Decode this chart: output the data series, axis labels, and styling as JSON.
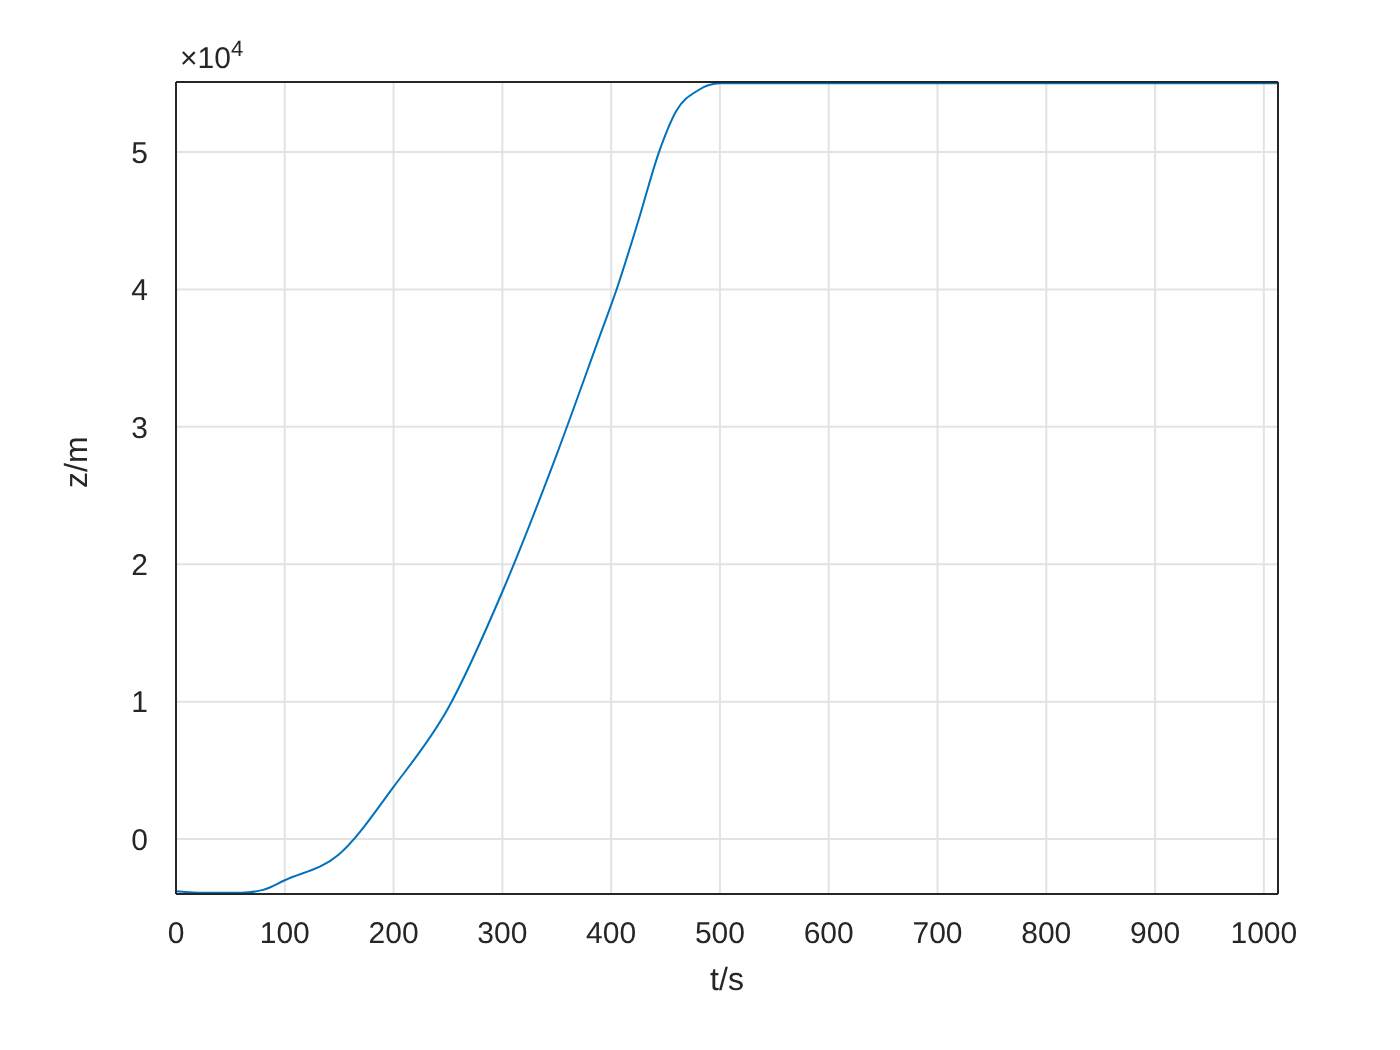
{
  "chart_data": {
    "type": "line",
    "xlabel": "t/s",
    "ylabel": "z/m",
    "annotations": [
      "×10$^{4}$"
    ],
    "x": [
      0,
      20,
      40,
      60,
      80,
      100,
      150,
      200,
      250,
      300,
      350,
      389,
      405,
      425,
      444,
      460,
      480,
      500,
      520,
      600,
      700,
      800,
      900,
      1013
    ],
    "series": [
      {
        "color": "#0072bd",
        "values": [
          -0.38,
          -0.39,
          -0.39,
          -0.39,
          -0.37,
          -0.3,
          -0.11,
          0.38,
          0.95,
          1.8,
          2.8,
          3.65,
          4.0,
          4.5,
          5.0,
          5.3,
          5.45,
          5.5,
          5.5,
          5.5,
          5.5,
          5.5,
          5.5,
          5.5
        ]
      }
    ],
    "xlim": [
      0,
      1013
    ],
    "xticks": [
      0,
      100,
      200,
      300,
      400,
      500,
      600,
      700,
      800,
      900,
      1000
    ],
    "ylim": [
      -0.4,
      5.51
    ],
    "yticks": [
      0,
      1,
      2,
      3,
      4,
      5
    ],
    "grid": true,
    "marker": "none",
    "line_style": "solid"
  }
}
